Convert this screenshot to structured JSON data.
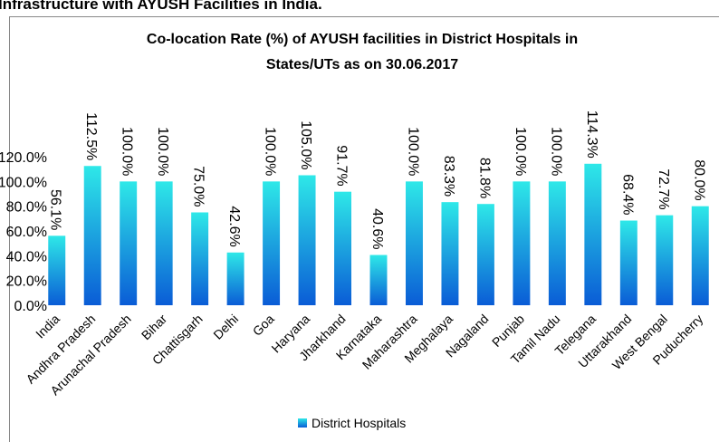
{
  "heading": "Infrastructure with AYUSH Facilities in India.",
  "chart_data": {
    "type": "bar",
    "title": [
      "Co-location Rate (%) of AYUSH facilities in District Hospitals in",
      "States/UTs as on 30.06.2017"
    ],
    "categories": [
      "India",
      "Andhra Pradesh",
      "Arunachal Pradesh",
      "Bihar",
      "Chattisgarh",
      "Delhi",
      "Goa",
      "Haryana",
      "Jharkhand",
      "Karnataka",
      "Maharashtra",
      "Meghalaya",
      "Nagaland",
      "Punjab",
      "Tamil Nadu",
      "Telegana",
      "Uttarakhand",
      "West Bengal",
      "Puducherry"
    ],
    "series": [
      {
        "name": "District Hospitals",
        "colors": [
          "#2ee8e8",
          "#0a5cd6"
        ],
        "values": [
          56.1,
          112.5,
          100.0,
          100.0,
          75.0,
          42.6,
          100.0,
          105.0,
          91.7,
          40.6,
          100.0,
          83.3,
          81.8,
          100.0,
          100.0,
          114.3,
          68.4,
          72.7,
          80.0
        ],
        "value_labels": [
          "56.1%",
          "112.5%",
          "100.0%",
          "100.0%",
          "75.0%",
          "42.6%",
          "100.0%",
          "105.0%",
          "91.7%",
          "40.6%",
          "100.0%",
          "83.3%",
          "81.8%",
          "100.0%",
          "100.0%",
          "114.3%",
          "68.4%",
          "72.7%",
          "80.0%"
        ]
      }
    ],
    "ylim": [
      0,
      120
    ],
    "yticks": [
      {
        "value": 0,
        "label": "0.0%"
      },
      {
        "value": 20,
        "label": "20.0%"
      },
      {
        "value": 40,
        "label": "40.0%"
      },
      {
        "value": 60,
        "label": "60.0%"
      },
      {
        "value": 80,
        "label": "80.0%"
      },
      {
        "value": 100,
        "label": "100.0%"
      },
      {
        "value": 120,
        "label": "120.0%"
      }
    ],
    "legend": "bottom"
  }
}
